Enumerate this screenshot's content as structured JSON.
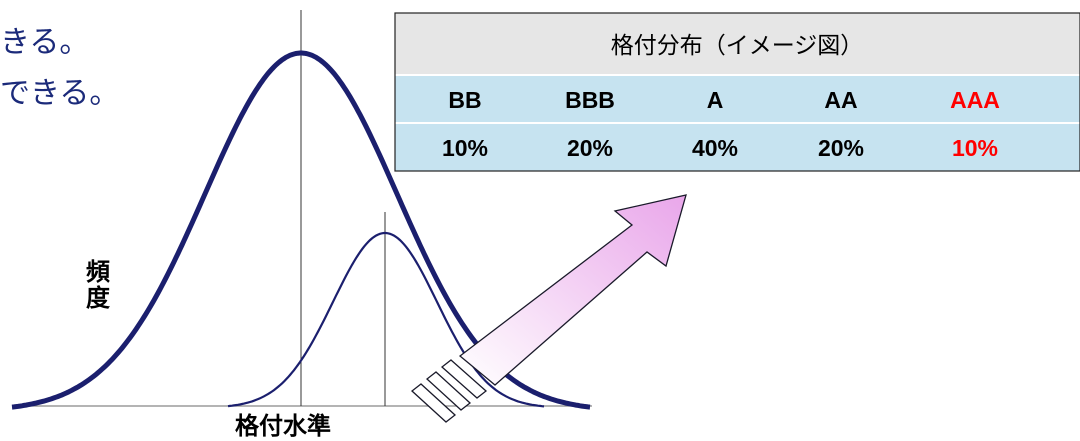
{
  "text_partial": [
    "きる。",
    "できる。"
  ],
  "frequency_label": [
    "頻",
    "度"
  ],
  "xaxis_label": "格付水準",
  "table": {
    "title": "格付分布（イメージ図）",
    "ratings": [
      "BB",
      "BBB",
      "A",
      "AA",
      "AAA"
    ],
    "shares": [
      "10%",
      "20%",
      "40%",
      "20%",
      "10%"
    ],
    "highlight_color": "#ff0000",
    "header_bg": "#e6e6e6",
    "row_bg": "#c6e3f0"
  },
  "colors": {
    "curve": "#1b1f6e",
    "arrow_fill": "#f4c6f4"
  }
}
